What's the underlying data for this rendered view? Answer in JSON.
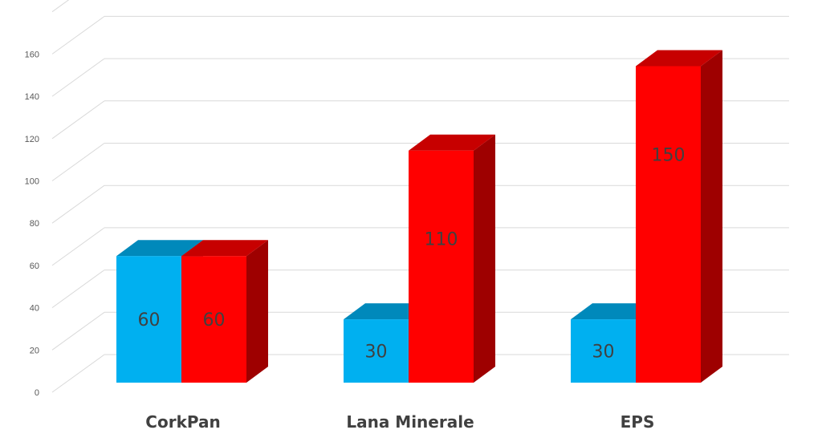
{
  "chart_data": {
    "type": "bar",
    "categories": [
      "CorkPan",
      "Lana Minerale",
      "EPS"
    ],
    "series": [
      {
        "values": [
          60,
          30,
          30
        ],
        "color": "#00B0F0"
      },
      {
        "values": [
          60,
          110,
          150
        ],
        "color": "#FF0000"
      }
    ],
    "ylim": [
      0,
      160
    ],
    "yticks": [
      0,
      20,
      40,
      60,
      80,
      100,
      120,
      140,
      160
    ],
    "grid": true,
    "legend": "none",
    "style": "3d-clustered-column"
  }
}
